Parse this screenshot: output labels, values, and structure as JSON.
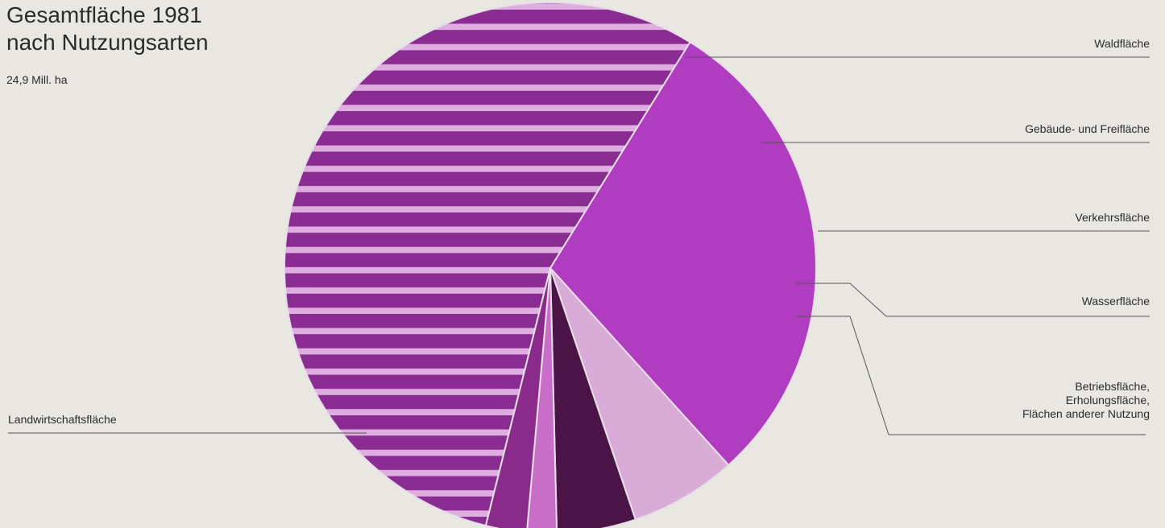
{
  "header": {
    "title_line1": "Gesamtfläche 1981",
    "title_line2": "nach Nutzungsarten",
    "subtitle": "24,9 Mill. ha"
  },
  "colors": {
    "background": "#e9e7e1",
    "waldflaeche": "#b03cbf",
    "gebaeude": "#d8acd6",
    "verkehr": "#4a1546",
    "wasser": "#c96ec8",
    "betrieb": "#8a2a8a",
    "landwirtschaft": "#8a2c92",
    "landwirtschaft_stripe": "#dfaee0",
    "leader": "#555555"
  },
  "chart_data": {
    "type": "pie",
    "title": "Gesamtfläche 1981 nach Nutzungsarten",
    "subtitle": "24,9 Mill. ha",
    "slices": [
      {
        "label": "Waldfläche",
        "value": 29.5,
        "color_key": "waldflaeche",
        "pattern": "solid"
      },
      {
        "label": "Gebäude- und Freifläche",
        "value": 6.5,
        "color_key": "gebaeude",
        "pattern": "solid"
      },
      {
        "label": "Verkehrsfläche",
        "value": 4.8,
        "color_key": "verkehr",
        "pattern": "solid"
      },
      {
        "label": "Wasserfläche",
        "value": 1.8,
        "color_key": "wasser",
        "pattern": "solid"
      },
      {
        "label": "Betriebsfläche, Erholungsfläche, Flächen anderer Nutzung",
        "label_lines": [
          "Betriebsfläche,",
          "Erholungsfläche,",
          "Flächen anderer Nutzung"
        ],
        "value": 2.5,
        "color_key": "betrieb",
        "pattern": "solid"
      },
      {
        "label": "Landwirtschaftsfläche",
        "value": 54.9,
        "color_key": "landwirtschaft",
        "pattern": "striped"
      }
    ],
    "legend": "right-side callouts"
  }
}
